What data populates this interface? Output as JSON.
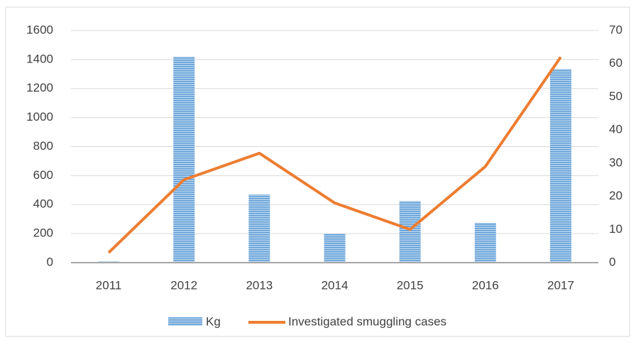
{
  "chart_data": {
    "type": "bar-line",
    "categories": [
      "2011",
      "2012",
      "2013",
      "2014",
      "2015",
      "2016",
      "2017"
    ],
    "series": [
      {
        "name": "Kg",
        "type": "bar",
        "color": "#5b9bd5",
        "values": [
          10,
          1420,
          470,
          200,
          425,
          275,
          1335
        ]
      },
      {
        "name": "Investigated smuggling cases",
        "type": "line",
        "axis": "y2",
        "color": "#ed7d31",
        "values": [
          3,
          25,
          33,
          18,
          10,
          29,
          62
        ]
      }
    ],
    "ylim": [
      0,
      1600
    ],
    "yticks": [
      0,
      200,
      400,
      600,
      800,
      1000,
      1200,
      1400,
      1600
    ],
    "y2lim": [
      0,
      70
    ],
    "y2ticks": [
      0,
      10,
      20,
      30,
      40,
      50,
      60,
      70
    ],
    "grid": true,
    "legend": "bottom"
  }
}
